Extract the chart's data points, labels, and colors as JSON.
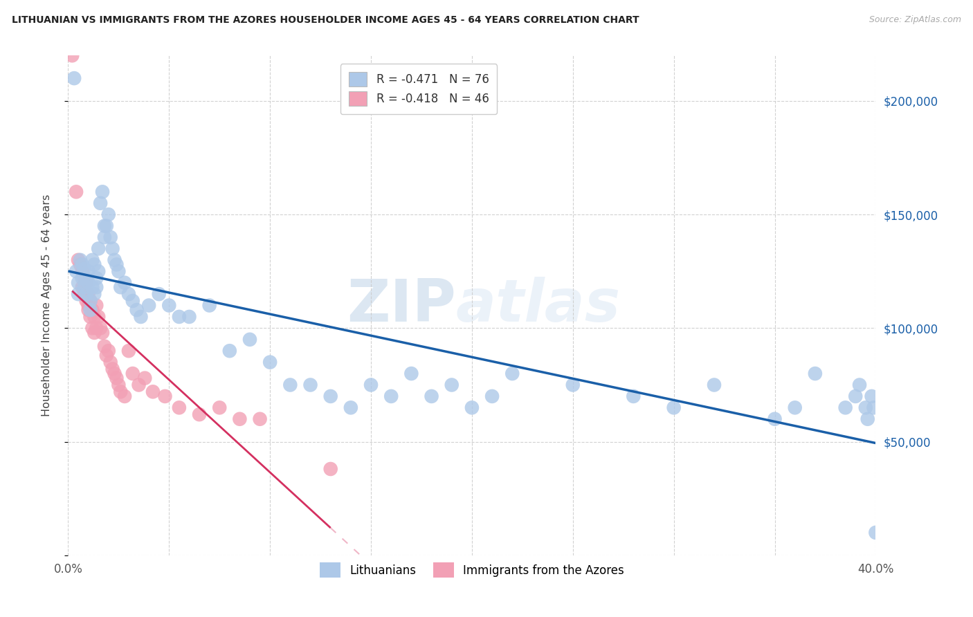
{
  "title": "LITHUANIAN VS IMMIGRANTS FROM THE AZORES HOUSEHOLDER INCOME AGES 45 - 64 YEARS CORRELATION CHART",
  "source": "Source: ZipAtlas.com",
  "ylabel": "Householder Income Ages 45 - 64 years",
  "xlim": [
    0.0,
    0.4
  ],
  "ylim": [
    0,
    220000
  ],
  "yticks": [
    0,
    50000,
    100000,
    150000,
    200000
  ],
  "ytick_labels": [
    "",
    "$50,000",
    "$100,000",
    "$150,000",
    "$200,000"
  ],
  "xticks": [
    0.0,
    0.05,
    0.1,
    0.15,
    0.2,
    0.25,
    0.3,
    0.35,
    0.4
  ],
  "xtick_labels": [
    "0.0%",
    "",
    "",
    "",
    "",
    "",
    "",
    "",
    "40.0%"
  ],
  "blue_fill": "#adc8e8",
  "pink_fill": "#f2a0b5",
  "blue_line": "#1a5fa8",
  "pink_line": "#d43060",
  "pink_dash_color": "#e8a0b8",
  "r_blue": -0.471,
  "n_blue": 76,
  "r_pink": -0.418,
  "n_pink": 46,
  "watermark_zip": "ZIP",
  "watermark_atlas": "atlas",
  "label_blue": "Lithuanians",
  "label_pink": "Immigrants from the Azores",
  "blue_x": [
    0.003,
    0.004,
    0.005,
    0.005,
    0.006,
    0.007,
    0.007,
    0.008,
    0.008,
    0.009,
    0.009,
    0.01,
    0.01,
    0.011,
    0.011,
    0.012,
    0.012,
    0.013,
    0.013,
    0.014,
    0.014,
    0.015,
    0.015,
    0.016,
    0.017,
    0.018,
    0.018,
    0.019,
    0.02,
    0.021,
    0.022,
    0.023,
    0.024,
    0.025,
    0.026,
    0.028,
    0.03,
    0.032,
    0.034,
    0.036,
    0.04,
    0.045,
    0.05,
    0.055,
    0.06,
    0.07,
    0.08,
    0.09,
    0.1,
    0.11,
    0.12,
    0.13,
    0.14,
    0.15,
    0.16,
    0.17,
    0.18,
    0.19,
    0.2,
    0.21,
    0.22,
    0.25,
    0.28,
    0.3,
    0.32,
    0.35,
    0.36,
    0.37,
    0.385,
    0.39,
    0.392,
    0.395,
    0.396,
    0.398,
    0.399,
    0.4
  ],
  "blue_y": [
    210000,
    125000,
    120000,
    115000,
    130000,
    128000,
    122000,
    118000,
    126000,
    122000,
    115000,
    125000,
    120000,
    112000,
    108000,
    130000,
    118000,
    115000,
    128000,
    122000,
    118000,
    135000,
    125000,
    155000,
    160000,
    145000,
    140000,
    145000,
    150000,
    140000,
    135000,
    130000,
    128000,
    125000,
    118000,
    120000,
    115000,
    112000,
    108000,
    105000,
    110000,
    115000,
    110000,
    105000,
    105000,
    110000,
    90000,
    95000,
    85000,
    75000,
    75000,
    70000,
    65000,
    75000,
    70000,
    80000,
    70000,
    75000,
    65000,
    70000,
    80000,
    75000,
    70000,
    65000,
    75000,
    60000,
    65000,
    80000,
    65000,
    70000,
    75000,
    65000,
    60000,
    70000,
    65000,
    10000
  ],
  "pink_x": [
    0.002,
    0.004,
    0.005,
    0.006,
    0.007,
    0.007,
    0.008,
    0.008,
    0.009,
    0.009,
    0.01,
    0.01,
    0.01,
    0.011,
    0.011,
    0.012,
    0.012,
    0.013,
    0.013,
    0.014,
    0.014,
    0.015,
    0.016,
    0.017,
    0.018,
    0.019,
    0.02,
    0.021,
    0.022,
    0.023,
    0.024,
    0.025,
    0.026,
    0.028,
    0.03,
    0.032,
    0.035,
    0.038,
    0.042,
    0.048,
    0.055,
    0.065,
    0.075,
    0.085,
    0.095,
    0.13
  ],
  "pink_y": [
    220000,
    160000,
    130000,
    128000,
    125000,
    118000,
    122000,
    115000,
    112000,
    120000,
    110000,
    108000,
    115000,
    105000,
    112000,
    108000,
    100000,
    105000,
    98000,
    100000,
    110000,
    105000,
    100000,
    98000,
    92000,
    88000,
    90000,
    85000,
    82000,
    80000,
    78000,
    75000,
    72000,
    70000,
    90000,
    80000,
    75000,
    78000,
    72000,
    70000,
    65000,
    62000,
    65000,
    60000,
    60000,
    38000
  ]
}
